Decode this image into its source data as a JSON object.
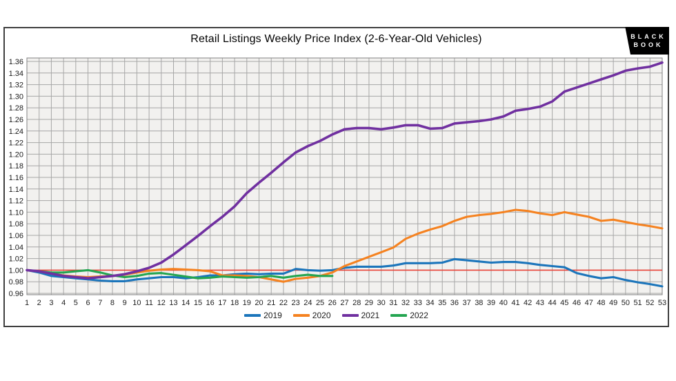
{
  "header": {
    "title": "Retail Listings Weekly Price Index (2-6-Year-Old Vehicles)"
  },
  "logo": {
    "line1": "BLACK",
    "line2": "BOOK"
  },
  "colors": {
    "plot_background": "#f2f1ef",
    "gridline": "#a6a6a6",
    "plot_frame": "#808080",
    "reference_line": "#e84338",
    "series_2019": "#1b75bb",
    "series_2020": "#f58220",
    "series_2021": "#7030a0",
    "series_2022": "#24a551"
  },
  "chart_data": {
    "type": "line",
    "title": "Retail Listings Weekly Price Index (2-6-Year-Old Vehicles)",
    "xlabel": "",
    "ylabel": "",
    "x": [
      1,
      2,
      3,
      4,
      5,
      6,
      7,
      8,
      9,
      10,
      11,
      12,
      13,
      14,
      15,
      16,
      17,
      18,
      19,
      20,
      21,
      22,
      23,
      24,
      25,
      26,
      27,
      28,
      29,
      30,
      31,
      32,
      33,
      34,
      35,
      36,
      37,
      38,
      39,
      40,
      41,
      42,
      43,
      44,
      45,
      46,
      47,
      48,
      49,
      50,
      51,
      52,
      53
    ],
    "ylim": [
      0.96,
      1.36
    ],
    "ytick_step": 0.02,
    "grid": true,
    "legend_position": "bottom",
    "reference_line": {
      "value": 1.0
    },
    "series": [
      {
        "name": "2019",
        "values": [
          1.0,
          0.996,
          0.99,
          0.988,
          0.986,
          0.984,
          0.982,
          0.981,
          0.981,
          0.984,
          0.986,
          0.988,
          0.988,
          0.986,
          0.988,
          0.991,
          0.991,
          0.993,
          0.994,
          0.993,
          0.994,
          0.994,
          1.002,
          1.0,
          0.999,
          1.0,
          1.004,
          1.006,
          1.006,
          1.006,
          1.008,
          1.012,
          1.012,
          1.012,
          1.013,
          1.019,
          1.017,
          1.015,
          1.013,
          1.014,
          1.014,
          1.012,
          1.009,
          1.007,
          1.005,
          0.995,
          0.99,
          0.986,
          0.988,
          0.983,
          0.979,
          0.976,
          0.972
        ]
      },
      {
        "name": "2020",
        "values": [
          1.0,
          0.998,
          0.994,
          0.991,
          0.989,
          0.988,
          0.989,
          0.99,
          0.992,
          0.996,
          0.999,
          1.001,
          1.002,
          1.001,
          1.0,
          0.998,
          0.991,
          0.991,
          0.99,
          0.988,
          0.984,
          0.98,
          0.985,
          0.987,
          0.99,
          0.996,
          1.007,
          1.015,
          1.023,
          1.031,
          1.039,
          1.054,
          1.063,
          1.07,
          1.076,
          1.085,
          1.092,
          1.095,
          1.097,
          1.1,
          1.104,
          1.102,
          1.098,
          1.095,
          1.1,
          1.096,
          1.092,
          1.085,
          1.087,
          1.083,
          1.079,
          1.076,
          1.072
        ]
      },
      {
        "name": "2021",
        "values": [
          1.0,
          0.998,
          0.994,
          0.99,
          0.988,
          0.986,
          0.988,
          0.99,
          0.993,
          0.998,
          1.004,
          1.013,
          1.027,
          1.043,
          1.059,
          1.076,
          1.092,
          1.11,
          1.133,
          1.151,
          1.168,
          1.186,
          1.203,
          1.214,
          1.223,
          1.234,
          1.243,
          1.245,
          1.245,
          1.243,
          1.246,
          1.25,
          1.25,
          1.244,
          1.245,
          1.253,
          1.255,
          1.257,
          1.26,
          1.265,
          1.275,
          1.278,
          1.282,
          1.291,
          1.308,
          1.315,
          1.322,
          1.329,
          1.336,
          1.344,
          1.348,
          1.351,
          1.358
        ]
      },
      {
        "name": "2022",
        "values": [
          1.0,
          0.998,
          0.996,
          0.996,
          0.998,
          1.0,
          0.996,
          0.991,
          0.988,
          0.99,
          0.994,
          0.995,
          0.992,
          0.989,
          0.986,
          0.987,
          0.989,
          0.988,
          0.987,
          0.988,
          0.99,
          0.987,
          0.99,
          0.992,
          0.99,
          0.99
        ]
      }
    ]
  }
}
